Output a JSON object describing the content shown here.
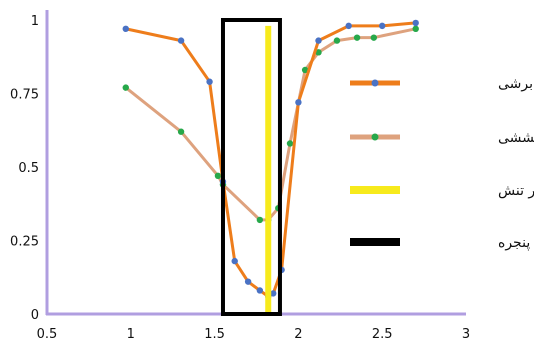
{
  "chart_data": {
    "type": "line",
    "xlim": [
      0.5,
      3
    ],
    "ylim": [
      0,
      1
    ],
    "x_ticks": [
      "0.5",
      "1",
      "1.5",
      "2",
      "2.5",
      "3"
    ],
    "y_ticks": [
      "0",
      "0.25",
      "0.5",
      "0.75",
      "1"
    ],
    "grid": false,
    "legend_position": "right",
    "series": [
      {
        "name": "شکست برشی",
        "color": "#ee7d1b",
        "marker_color": "#4a72c4",
        "x": [
          0.97,
          1.3,
          1.47,
          1.55,
          1.62,
          1.7,
          1.77,
          1.82,
          1.85,
          1.9,
          2.0,
          2.12,
          2.3,
          2.5,
          2.7
        ],
        "y": [
          0.97,
          0.93,
          0.79,
          0.45,
          0.18,
          0.11,
          0.08,
          0.06,
          0.07,
          0.15,
          0.72,
          0.93,
          0.98,
          0.98,
          0.99
        ]
      },
      {
        "name": "شکست کششی",
        "color": "#dea27e",
        "marker_color": "#27a84a",
        "x": [
          0.97,
          1.3,
          1.52,
          1.55,
          1.77,
          1.82,
          1.88,
          1.95,
          2.04,
          2.12,
          2.23,
          2.35,
          2.45,
          2.7
        ],
        "y": [
          0.77,
          0.62,
          0.47,
          0.44,
          0.32,
          0.32,
          0.36,
          0.58,
          0.83,
          0.89,
          0.93,
          0.94,
          0.94,
          0.97
        ]
      }
    ],
    "annotations": [
      {
        "name": "کمترین مقدار تنش",
        "type": "vertical-line",
        "x": 1.82,
        "color": "#f7ea1c"
      },
      {
        "name": "پنجره",
        "type": "window-box",
        "x_range": [
          1.55,
          1.89
        ],
        "y_range": [
          0,
          1
        ],
        "color": "#000000"
      }
    ],
    "legend": [
      {
        "label": "شکست برشی",
        "color": "#ee7d1b",
        "marker": true,
        "marker_color": "#4a72c4"
      },
      {
        "label": "شکست کششی",
        "color": "#dea27e",
        "marker": true,
        "marker_color": "#27a84a"
      },
      {
        "label": "کمترین مقدار تنش",
        "color": "#f7ea1c",
        "marker": false
      },
      {
        "label": "پنجره",
        "color": "#000000",
        "marker": false
      }
    ]
  }
}
